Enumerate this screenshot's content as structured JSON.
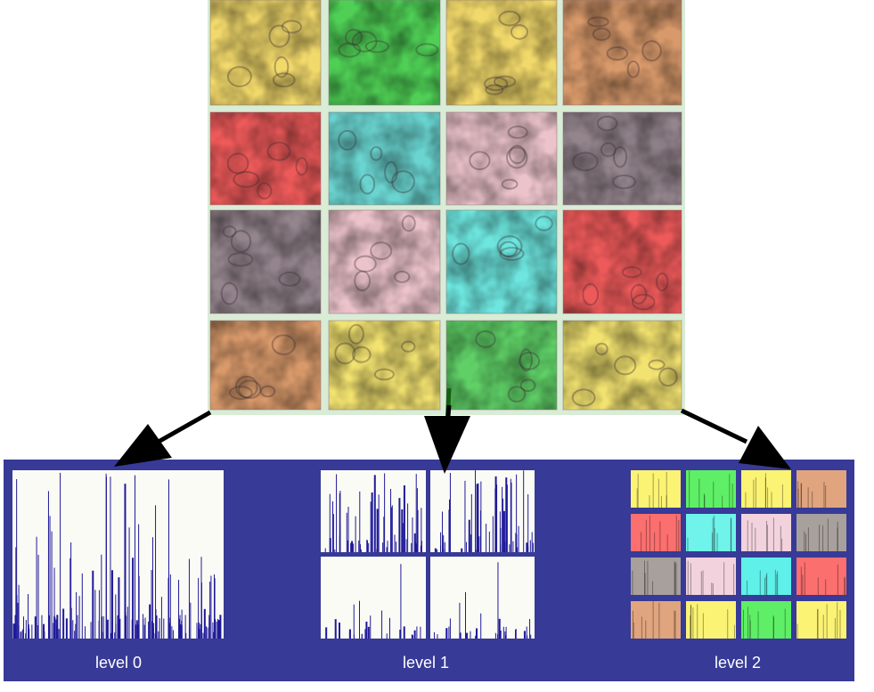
{
  "levels": [
    {
      "label": "level 0"
    },
    {
      "label": "level 1"
    },
    {
      "label": "level 2"
    }
  ],
  "tiles": [
    {
      "name": "tile-r1c1",
      "color": "#f2d96b"
    },
    {
      "name": "tile-r1c2",
      "color": "#4fcf55"
    },
    {
      "name": "tile-r1c3",
      "color": "#f2d96b"
    },
    {
      "name": "tile-r1c4",
      "color": "#d99a6b"
    },
    {
      "name": "tile-r2c1",
      "color": "#ee5a5a"
    },
    {
      "name": "tile-r2c2",
      "color": "#6ad4d0"
    },
    {
      "name": "tile-r2c3",
      "color": "#ecc3cb"
    },
    {
      "name": "tile-r2c4",
      "color": "#94858d"
    },
    {
      "name": "tile-r3c1",
      "color": "#94858d"
    },
    {
      "name": "tile-r3c2",
      "color": "#ecc3cb"
    },
    {
      "name": "tile-r3c3",
      "color": "#6ee6df"
    },
    {
      "name": "tile-r3c4",
      "color": "#ee5a5a"
    },
    {
      "name": "tile-r4c1",
      "color": "#d99a6b"
    },
    {
      "name": "tile-r4c2",
      "color": "#f2e270"
    },
    {
      "name": "tile-r4c3",
      "color": "#5fcf66"
    },
    {
      "name": "tile-r4c4",
      "color": "#f2e270"
    }
  ],
  "level2_colors": [
    "#fbf373",
    "#5fef66",
    "#fbf373",
    "#e0a57e",
    "#fb6f6f",
    "#6ff3ea",
    "#f2d3dd",
    "#a8a09c",
    "#a8a09c",
    "#f2d3dd",
    "#5ff0ea",
    "#fb6f6f",
    "#e0a57e",
    "#fbf373",
    "#5fef66",
    "#fbf373"
  ],
  "colors": {
    "panel_bg": "#373a96",
    "bar": "#1f1a99",
    "hist_bg": "#fbfbf5",
    "arrow": "#000000",
    "tile_gap": "#d9ecd6"
  }
}
